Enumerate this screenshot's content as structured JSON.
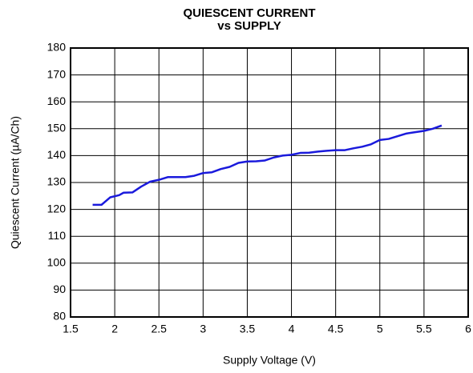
{
  "chart_data": {
    "type": "line",
    "title": [
      "QUIESCENT CURRENT",
      "vs SUPPLY"
    ],
    "x_label": "Supply Voltage (V)",
    "y_label": "Quiescent Current (µA/Ch)",
    "x": [
      1.75,
      1.85,
      1.95,
      2.05,
      2.1,
      2.2,
      2.3,
      2.4,
      2.5,
      2.6,
      2.7,
      2.8,
      2.9,
      3.0,
      3.1,
      3.2,
      3.3,
      3.4,
      3.5,
      3.6,
      3.7,
      3.8,
      3.9,
      4.0,
      4.1,
      4.2,
      4.3,
      4.4,
      4.5,
      4.6,
      4.7,
      4.8,
      4.9,
      5.0,
      5.1,
      5.2,
      5.3,
      5.4,
      5.5,
      5.6,
      5.7
    ],
    "series": [
      {
        "color": "#1a1adc",
        "values": [
          121.7,
          121.7,
          124.5,
          125.3,
          126.2,
          126.3,
          128.5,
          130.3,
          131,
          132,
          132,
          132,
          132.5,
          133.5,
          133.8,
          135,
          135.8,
          137.3,
          137.8,
          137.9,
          138.2,
          139.3,
          140,
          140.3,
          141,
          141.1,
          141.5,
          141.8,
          142,
          142,
          142.7,
          143.3,
          144.2,
          145.8,
          146.2,
          147.2,
          148.2,
          148.7,
          149.2,
          150,
          151.2
        ]
      }
    ],
    "xlim": [
      1.5,
      6
    ],
    "xticks": [
      1.5,
      2,
      2.5,
      3,
      3.5,
      4,
      4.5,
      5,
      5.5,
      6
    ],
    "ylim": [
      80,
      180
    ],
    "yticks": [
      80,
      90,
      100,
      110,
      120,
      130,
      140,
      150,
      160,
      170,
      180
    ],
    "grid": true
  }
}
